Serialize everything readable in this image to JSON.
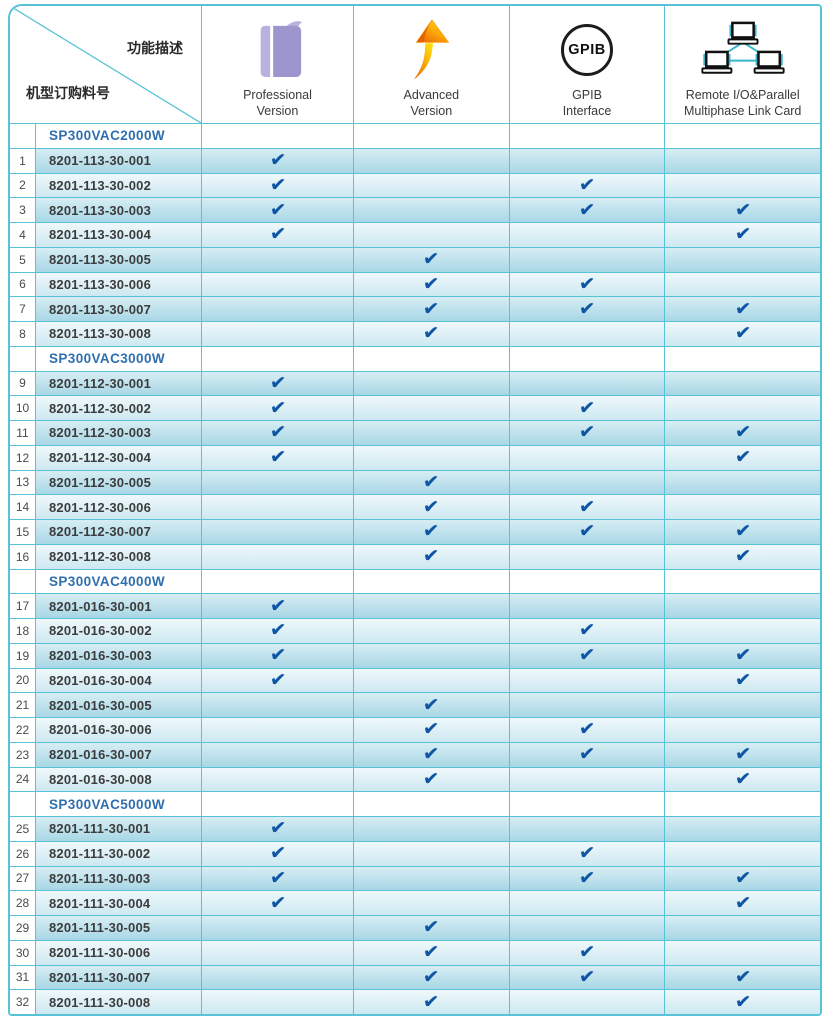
{
  "table": {
    "corner": {
      "top_right_label": "功能描述",
      "bottom_left_label": "机型订购料号"
    },
    "feature_columns": [
      {
        "id": "professional",
        "icon": "book-icon",
        "label_lines": [
          "Professional",
          "Version"
        ]
      },
      {
        "id": "advanced",
        "icon": "trend-arrow-icon",
        "label_lines": [
          "Advanced",
          "Version"
        ]
      },
      {
        "id": "gpib",
        "icon": "gpib-circle-icon",
        "label_lines": [
          "GPIB",
          "Interface"
        ],
        "icon_text": "GPIB"
      },
      {
        "id": "remote",
        "icon": "network-computers-icon",
        "label_lines": [
          "Remote I/O&Parallel",
          "Multiphase Link Card"
        ]
      }
    ],
    "checkmark_glyph": "✔",
    "sections": [
      {
        "model": "SP300VAC2000W",
        "rows": [
          {
            "no": "1",
            "part": "8201-113-30-001",
            "checks": [
              1,
              0,
              0,
              0
            ]
          },
          {
            "no": "2",
            "part": "8201-113-30-002",
            "checks": [
              1,
              0,
              1,
              0
            ]
          },
          {
            "no": "3",
            "part": "8201-113-30-003",
            "checks": [
              1,
              0,
              1,
              1
            ]
          },
          {
            "no": "4",
            "part": "8201-113-30-004",
            "checks": [
              1,
              0,
              0,
              1
            ]
          },
          {
            "no": "5",
            "part": "8201-113-30-005",
            "checks": [
              0,
              1,
              0,
              0
            ]
          },
          {
            "no": "6",
            "part": "8201-113-30-006",
            "checks": [
              0,
              1,
              1,
              0
            ]
          },
          {
            "no": "7",
            "part": "8201-113-30-007",
            "checks": [
              0,
              1,
              1,
              1
            ]
          },
          {
            "no": "8",
            "part": "8201-113-30-008",
            "checks": [
              0,
              1,
              0,
              1
            ]
          }
        ]
      },
      {
        "model": "SP300VAC3000W",
        "rows": [
          {
            "no": "9",
            "part": "8201-112-30-001",
            "checks": [
              1,
              0,
              0,
              0
            ]
          },
          {
            "no": "10",
            "part": "8201-112-30-002",
            "checks": [
              1,
              0,
              1,
              0
            ]
          },
          {
            "no": "11",
            "part": "8201-112-30-003",
            "checks": [
              1,
              0,
              1,
              1
            ]
          },
          {
            "no": "12",
            "part": "8201-112-30-004",
            "checks": [
              1,
              0,
              0,
              1
            ]
          },
          {
            "no": "13",
            "part": "8201-112-30-005",
            "checks": [
              0,
              1,
              0,
              0
            ]
          },
          {
            "no": "14",
            "part": "8201-112-30-006",
            "checks": [
              0,
              1,
              1,
              0
            ]
          },
          {
            "no": "15",
            "part": "8201-112-30-007",
            "checks": [
              0,
              1,
              1,
              1
            ]
          },
          {
            "no": "16",
            "part": "8201-112-30-008",
            "checks": [
              0,
              1,
              0,
              1
            ]
          }
        ]
      },
      {
        "model": "SP300VAC4000W",
        "rows": [
          {
            "no": "17",
            "part": "8201-016-30-001",
            "checks": [
              1,
              0,
              0,
              0
            ]
          },
          {
            "no": "18",
            "part": "8201-016-30-002",
            "checks": [
              1,
              0,
              1,
              0
            ]
          },
          {
            "no": "19",
            "part": "8201-016-30-003",
            "checks": [
              1,
              0,
              1,
              1
            ]
          },
          {
            "no": "20",
            "part": "8201-016-30-004",
            "checks": [
              1,
              0,
              0,
              1
            ]
          },
          {
            "no": "21",
            "part": "8201-016-30-005",
            "checks": [
              0,
              1,
              0,
              0
            ]
          },
          {
            "no": "22",
            "part": "8201-016-30-006",
            "checks": [
              0,
              1,
              1,
              0
            ]
          },
          {
            "no": "23",
            "part": "8201-016-30-007",
            "checks": [
              0,
              1,
              1,
              1
            ]
          },
          {
            "no": "24",
            "part": "8201-016-30-008",
            "checks": [
              0,
              1,
              0,
              1
            ]
          }
        ]
      },
      {
        "model": "SP300VAC5000W",
        "rows": [
          {
            "no": "25",
            "part": "8201-111-30-001",
            "checks": [
              1,
              0,
              0,
              0
            ]
          },
          {
            "no": "26",
            "part": "8201-111-30-002",
            "checks": [
              1,
              0,
              1,
              0
            ]
          },
          {
            "no": "27",
            "part": "8201-111-30-003",
            "checks": [
              1,
              0,
              1,
              1
            ]
          },
          {
            "no": "28",
            "part": "8201-111-30-004",
            "checks": [
              1,
              0,
              0,
              1
            ]
          },
          {
            "no": "29",
            "part": "8201-111-30-005",
            "checks": [
              0,
              1,
              0,
              0
            ]
          },
          {
            "no": "30",
            "part": "8201-111-30-006",
            "checks": [
              0,
              1,
              1,
              0
            ]
          },
          {
            "no": "31",
            "part": "8201-111-30-007",
            "checks": [
              0,
              1,
              1,
              1
            ]
          },
          {
            "no": "32",
            "part": "8201-111-30-008",
            "checks": [
              0,
              1,
              0,
              1
            ]
          }
        ]
      }
    ],
    "colors": {
      "border": "#58c3d6",
      "checkmark": "#0e55a5",
      "model_text": "#2f6fae",
      "row_dark_top": "#d7edf3",
      "row_dark_bottom": "#a8d7e6",
      "row_light_top": "#eff8fb",
      "row_light_bottom": "#cde8f1",
      "book_purple": "#9c95ce",
      "arrow_orange": "#e35d05",
      "arrow_yellow": "#ffd90a",
      "network_cyan": "#35b6cd"
    }
  }
}
